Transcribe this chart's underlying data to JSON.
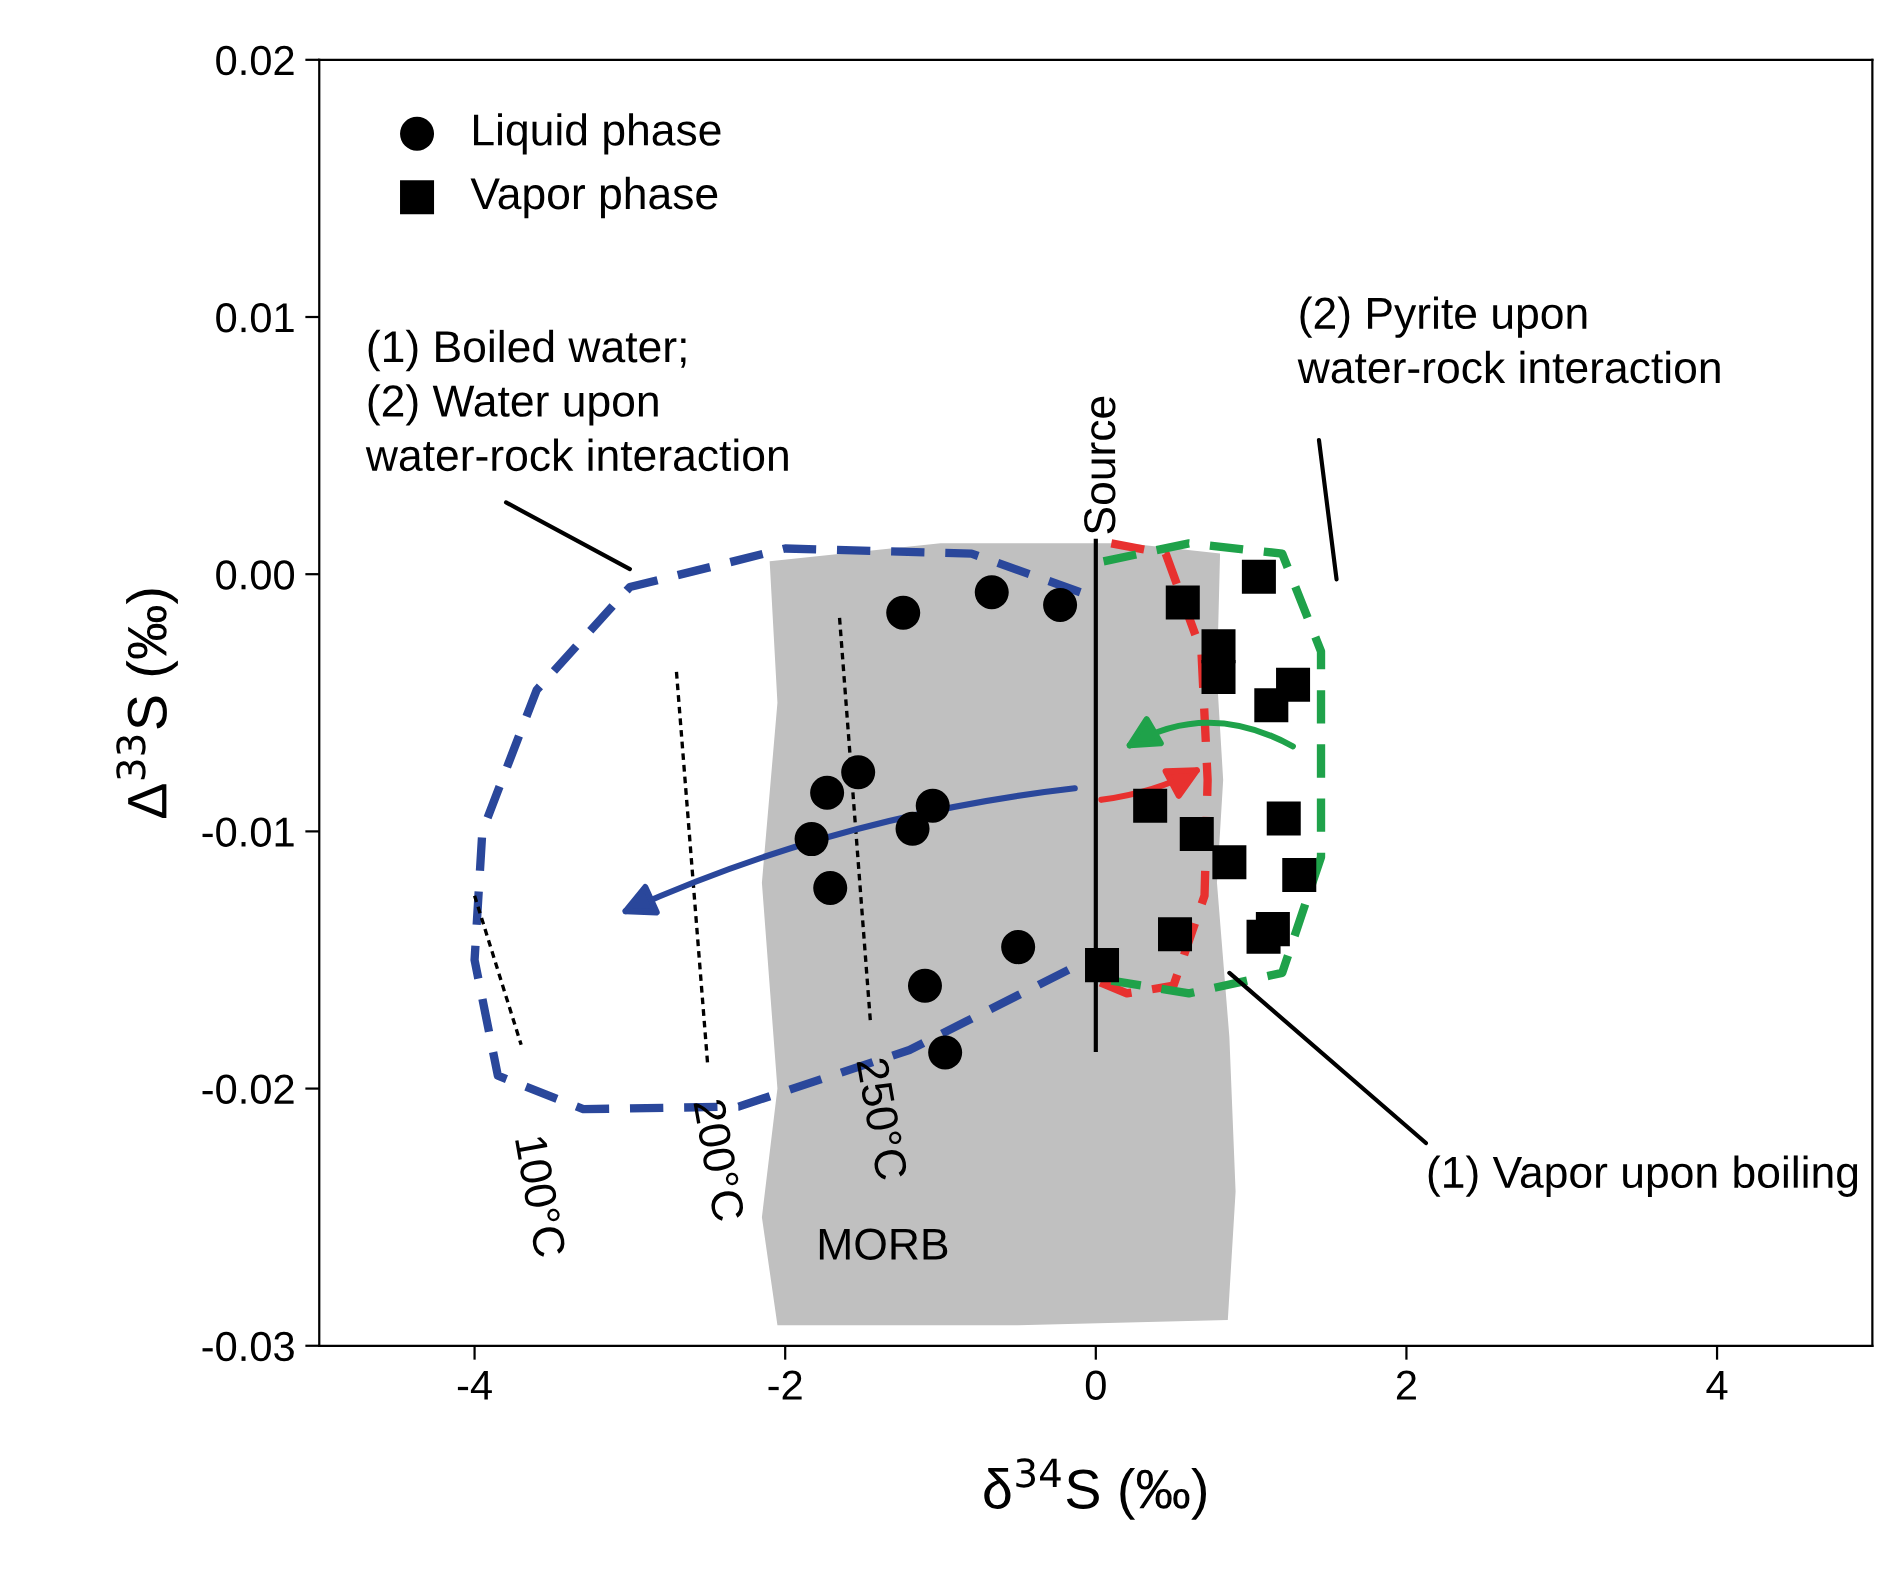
{
  "chart_data": {
    "type": "scatter",
    "xlabel": "δ$^{34}$S (‰)",
    "ylabel": "Δ$^{33}$S (‰)",
    "xlim": [
      -5,
      5
    ],
    "xticks": [
      -4,
      -2,
      0,
      2,
      4
    ],
    "ylim": [
      -0.03,
      0.02
    ],
    "yticks": [
      {
        "value": -0.03,
        "label": "-0.03"
      },
      {
        "value": -0.02,
        "label": "-0.02"
      },
      {
        "value": -0.01,
        "label": "-0.01"
      },
      {
        "value": 0,
        "label": "0.00"
      },
      {
        "value": 0.01,
        "label": "0.01"
      },
      {
        "value": 0.02,
        "label": "0.02"
      }
    ],
    "grid": false,
    "legend": "top left",
    "ref_lines": [
      {
        "axis": "x",
        "value": 0,
        "label": "Source"
      }
    ],
    "annotations": [
      "(1) Boiled water;\n(2) Water upon\nwater-rock interaction",
      "(2) Pyrite upon\nwater-rock interaction",
      "(1) Vapor upon boiling",
      "MORB",
      "100°C",
      "200°C",
      "250°C"
    ],
    "series": [
      {
        "name": "Liquid phase",
        "color": "#000000",
        "marker": "circle",
        "x": [
          -1.24,
          -0.67,
          -0.23,
          -1.53,
          -1.73,
          -1.83,
          -1.71,
          -1.05,
          -1.18,
          -0.5,
          -1.1,
          -0.97
        ],
        "values": [
          -0.0015,
          -0.0007,
          -0.0012,
          -0.0077,
          -0.0085,
          -0.0103,
          -0.0122,
          -0.009,
          -0.0099,
          -0.0145,
          -0.016,
          -0.0186
        ]
      },
      {
        "name": "Vapor phase",
        "color": "#000000",
        "marker": "square",
        "x": [
          0.04,
          1.05,
          0.56,
          0.79,
          0.79,
          1.27,
          1.13,
          0.35,
          1.21,
          0.65,
          0.86,
          1.31,
          0.51,
          1.14,
          1.08
        ],
        "values": [
          -0.0152,
          -0.0001,
          -0.0011,
          -0.0028,
          -0.004,
          -0.0043,
          -0.0051,
          -0.009,
          -0.0095,
          -0.0101,
          -0.0112,
          -0.0117,
          -0.014,
          -0.0138,
          -0.0141
        ]
      }
    ]
  }
}
